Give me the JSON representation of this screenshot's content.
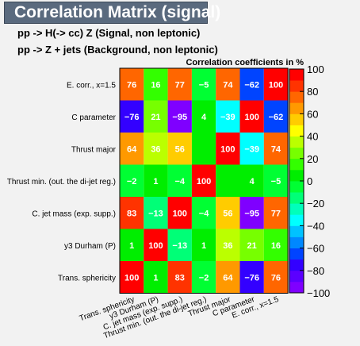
{
  "header": {
    "title": "Correlation Matrix (signal)",
    "line1": "pp -> H(-> cc) Z   (Signal, non leptonic)",
    "line2": "pp -> Z + jets   (Background, non leptonic)"
  },
  "chart_data": {
    "type": "heatmap",
    "title": "Correlation coefficients in %",
    "x_categories": [
      "Trans. sphericity",
      "y3 Durham (P)",
      "C. jet mass (exp. supp.)",
      "Thrust min. (out. the di-jet reg.)",
      "Thrust major",
      "C parameter",
      "E. corr., x=1.5"
    ],
    "y_categories_top_to_bottom": [
      "E. corr., x=1.5",
      "C parameter",
      "Thrust major",
      "Thrust min. (out. the di-jet reg.)",
      "C. jet mass (exp. supp.)",
      "y3 Durham (P)",
      "Trans. sphericity"
    ],
    "values_top_to_bottom": [
      [
        76,
        16,
        77,
        -5,
        74,
        -62,
        100
      ],
      [
        -76,
        21,
        -95,
        4,
        -39,
        100,
        -62
      ],
      [
        64,
        36,
        56,
        null,
        100,
        -39,
        74
      ],
      [
        -2,
        1,
        -4,
        100,
        null,
        4,
        -5
      ],
      [
        83,
        -13,
        100,
        -4,
        56,
        -95,
        77
      ],
      [
        1,
        100,
        -13,
        1,
        36,
        21,
        16
      ],
      [
        100,
        1,
        83,
        -2,
        64,
        -76,
        76
      ]
    ],
    "zlim": [
      -100,
      100
    ],
    "colorbar_ticks": [
      "100",
      "80",
      "60",
      "40",
      "20",
      "0",
      "−20",
      "−40",
      "−60",
      "−80",
      "−100"
    ],
    "palette": [
      "#7f00ff",
      "#5b00ff",
      "#3300ff",
      "#0044ff",
      "#0088ff",
      "#00c2ff",
      "#00ffff",
      "#00ffbb",
      "#00ff77",
      "#00ff33",
      "#00ee00",
      "#33ff00",
      "#77ff00",
      "#bbff00",
      "#ffff00",
      "#ffcc00",
      "#ff9900",
      "#ff6600",
      "#ff3300",
      "#ff0000"
    ]
  }
}
